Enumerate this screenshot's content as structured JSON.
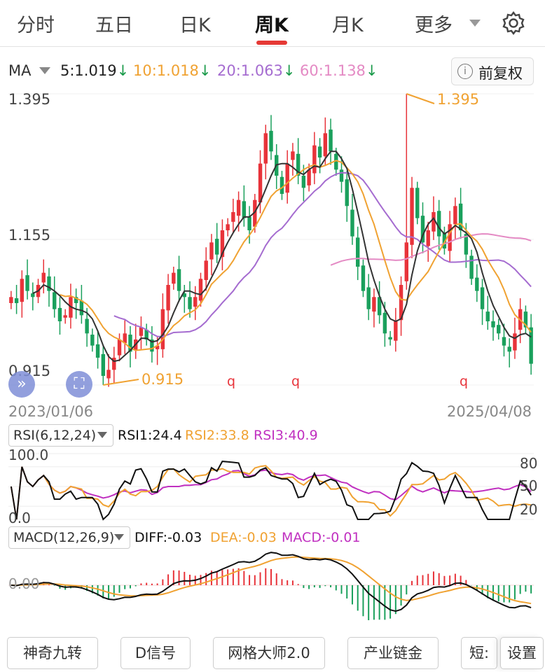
{
  "tabs": [
    {
      "label": "分时"
    },
    {
      "label": "五日"
    },
    {
      "label": "日K"
    },
    {
      "label": "周K",
      "active": true
    },
    {
      "label": "月K"
    },
    {
      "label": "更多"
    }
  ],
  "ma": {
    "selector": "MA",
    "items": [
      {
        "label": "5:1.019",
        "arrow": "↓",
        "color": "#333333"
      },
      {
        "label": "10:1.018",
        "arrow": "↓",
        "color": "#f0a232"
      },
      {
        "label": "20:1.063",
        "arrow": "↓",
        "color": "#a56cd0"
      },
      {
        "label": "60:1.138",
        "arrow": "↓",
        "color": "#e48ac4"
      }
    ],
    "arrow_color": "#1a9a4a"
  },
  "restore_button": {
    "icon": "info-icon",
    "label": "前复权"
  },
  "price_axis": {
    "top": "1.395",
    "mid": "1.155",
    "bottom": "0.915"
  },
  "annotations": {
    "high": "1.395",
    "low": "0.915",
    "q_marks": [
      "q",
      "q",
      "q"
    ]
  },
  "dates": {
    "start": "2023/01/06",
    "end": "2025/04/08"
  },
  "rsi": {
    "selector": "RSI(6,12,24)",
    "values": [
      {
        "label": "RSI1:24.4",
        "color": "#111111"
      },
      {
        "label": "RSI2:33.8",
        "color": "#f0a232"
      },
      {
        "label": "RSI3:40.9",
        "color": "#c030c0"
      }
    ],
    "axis_left": {
      "top": "100.0",
      "bottom": "0.0"
    },
    "axis_right": [
      "80",
      "50",
      "20"
    ]
  },
  "macd": {
    "selector": "MACD(12,26,9)",
    "values": [
      {
        "label": "DIFF:-0.03",
        "color": "#111111"
      },
      {
        "label": "DEA:-0.03",
        "color": "#f0a232"
      },
      {
        "label": "MACD:-0.01",
        "color": "#c030c0"
      }
    ],
    "zero_label": "0.00"
  },
  "bottom_buttons": [
    "神奇九转",
    "D信号",
    "网格大师2.0",
    "产业链金",
    "短:",
    "设置"
  ],
  "colors": {
    "up": "#e8333a",
    "down": "#1aa05c",
    "accent": "#e53935"
  },
  "chart_data": {
    "type": "candlestick",
    "period": "weekly",
    "x_start": "2023/01/06",
    "x_end": "2025/04/08",
    "y_range": [
      0.915,
      1.395
    ],
    "y_ticks": [
      1.395,
      1.155,
      0.915
    ],
    "high": 1.395,
    "low": 0.915,
    "close": [
      1.06,
      1.05,
      1.09,
      1.07,
      1.06,
      1.08,
      1.1,
      1.07,
      1.04,
      1.02,
      1.03,
      1.06,
      1.05,
      1.03,
      1.0,
      0.98,
      0.96,
      0.93,
      0.94,
      0.96,
      0.99,
      1.0,
      0.97,
      0.99,
      1.01,
      0.99,
      0.97,
      0.98,
      1.04,
      1.08,
      1.1,
      1.07,
      1.06,
      1.04,
      1.06,
      1.09,
      1.12,
      1.15,
      1.13,
      1.17,
      1.18,
      1.2,
      1.22,
      1.19,
      1.17,
      1.22,
      1.28,
      1.33,
      1.3,
      1.26,
      1.23,
      1.28,
      1.3,
      1.26,
      1.24,
      1.27,
      1.31,
      1.29,
      1.33,
      1.3,
      1.27,
      1.25,
      1.21,
      1.16,
      1.11,
      1.07,
      1.04,
      1.06,
      1.03,
      1.0,
      0.99,
      1.02,
      1.08,
      1.15,
      1.24,
      1.19,
      1.15,
      1.17,
      1.2,
      1.16,
      1.14,
      1.18,
      1.21,
      1.17,
      1.13,
      1.09,
      1.07,
      1.04,
      1.02,
      1.01,
      1.0,
      0.98,
      0.97,
      1.0,
      1.04,
      1.01,
      0.95
    ],
    "ma5_last": 1.019,
    "ma10_last": 1.018,
    "ma20_last": 1.063,
    "ma60_last": 1.138
  }
}
